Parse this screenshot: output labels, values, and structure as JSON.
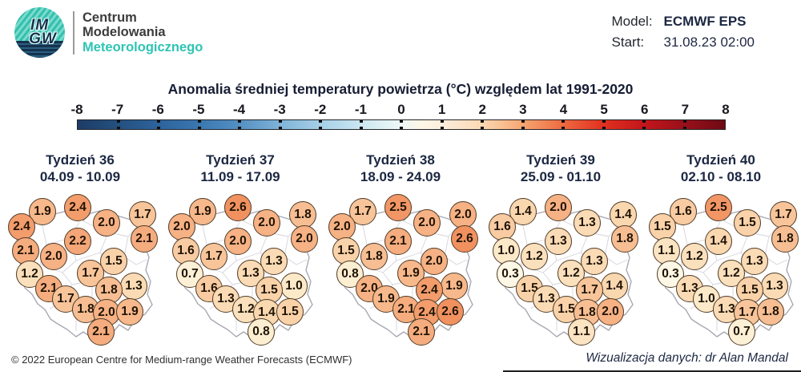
{
  "header": {
    "logo": {
      "imgw_top": "IM",
      "imgw_bottom": "GW",
      "line1": "Centrum",
      "line2": "Modelowania",
      "line3": "Meteorologicznego"
    },
    "model_label": "Model:",
    "model_value": "ECMWF EPS",
    "start_label": "Start:",
    "start_value": "31.08.23 02:00"
  },
  "title": "Anomalia średniej temperatury powietrza (°C) względem lat 1991-2020",
  "footer": {
    "left": "© 2022 European Centre for Medium-range Weather Forecasts (ECMWF)",
    "right": "Wizualizacja danych: dr Alan Mandal"
  },
  "chart_data": {
    "type": "scatter",
    "subtype": "geographic-bubble-maps-of-poland",
    "title": "Anomalia średniej temperatury powietrza (°C) względem lat 1991-2020",
    "colorbar": {
      "min": -8,
      "max": 8,
      "tick_labels": [
        "-8",
        "-7",
        "-6",
        "-5",
        "-4",
        "-3",
        "-2",
        "-1",
        "0",
        "1",
        "2",
        "3",
        "4",
        "5",
        "6",
        "7",
        "8"
      ],
      "negative_color": "#1d3c66",
      "zero_color": "#f6f8ef",
      "positive_color": "#6e0a14"
    },
    "bubble_color_stops": [
      [
        0.0,
        "#fdfbee"
      ],
      [
        0.5,
        "#fdf5df"
      ],
      [
        1.0,
        "#fbe9c8"
      ],
      [
        1.5,
        "#f9d2a9"
      ],
      [
        2.0,
        "#f6b184"
      ],
      [
        2.6,
        "#f19160"
      ],
      [
        3.0,
        "#ee7d4a"
      ]
    ],
    "stations_xy_percent": [
      [
        26.5,
        14.5
      ],
      [
        48.5,
        12
      ],
      [
        66.5,
        21.5
      ],
      [
        89,
        16.5
      ],
      [
        13.5,
        24
      ],
      [
        48.5,
        33
      ],
      [
        90,
        31.5
      ],
      [
        16,
        39
      ],
      [
        33.5,
        42.5
      ],
      [
        71,
        45.5
      ],
      [
        56.5,
        52.5
      ],
      [
        18.5,
        53
      ],
      [
        83.5,
        60.5
      ],
      [
        68,
        63
      ],
      [
        30.5,
        62
      ],
      [
        41,
        68.5
      ],
      [
        53.5,
        75
      ],
      [
        66.5,
        77
      ],
      [
        81,
        76.5
      ],
      [
        63,
        89
      ]
    ],
    "weeks": [
      {
        "label": "Tydzień 36",
        "dates": "04.09 - 10.09",
        "values": [
          "1.9",
          "2.4",
          "2.0",
          "1.7",
          "2.4",
          "2.2",
          "2.1",
          "2.1",
          "2.0",
          "1.5",
          "1.7",
          "1.2",
          "1.3",
          "1.8",
          "2.1",
          "1.7",
          "1.8",
          "2.0",
          "1.9",
          "2.1"
        ]
      },
      {
        "label": "Tydzień 37",
        "dates": "11.09 - 17.09",
        "values": [
          "1.9",
          "2.6",
          "2.0",
          "1.8",
          "2.0",
          "2.0",
          "2.0",
          "1.6",
          "1.7",
          "1.3",
          "1.3",
          "0.7",
          "1.0",
          "1.5",
          "1.6",
          "1.3",
          "1.2",
          "1.4",
          "1.5",
          "0.8"
        ]
      },
      {
        "label": "Tydzień 38",
        "dates": "18.09 - 24.09",
        "values": [
          "1.7",
          "2.5",
          "2.0",
          "2.0",
          "2.0",
          "2.1",
          "2.6",
          "1.5",
          "1.8",
          "2.0",
          "1.9",
          "0.8",
          "1.9",
          "2.4",
          "2.0",
          "1.9",
          "2.1",
          "2.4",
          "2.6",
          "2.1"
        ]
      },
      {
        "label": "Tydzień 39",
        "dates": "25.09 - 01.10",
        "values": [
          "1.4",
          "2.0",
          "1.3",
          "1.4",
          "1.6",
          "1.3",
          "1.8",
          "1.0",
          "1.2",
          "1.3",
          "1.2",
          "0.3",
          "1.4",
          "1.7",
          "1.5",
          "1.3",
          "1.5",
          "1.8",
          "2.0",
          "1.1"
        ]
      },
      {
        "label": "Tydzień 40",
        "dates": "02.10 - 08.10",
        "values": [
          "1.6",
          "2.5",
          "1.5",
          "1.7",
          "1.5",
          "1.4",
          "1.8",
          "1.1",
          "1.2",
          "1.3",
          "1.2",
          "0.3",
          "1.3",
          "1.5",
          "1.3",
          "1.0",
          "1.3",
          "1.7",
          "1.8",
          "0.7"
        ]
      }
    ]
  }
}
